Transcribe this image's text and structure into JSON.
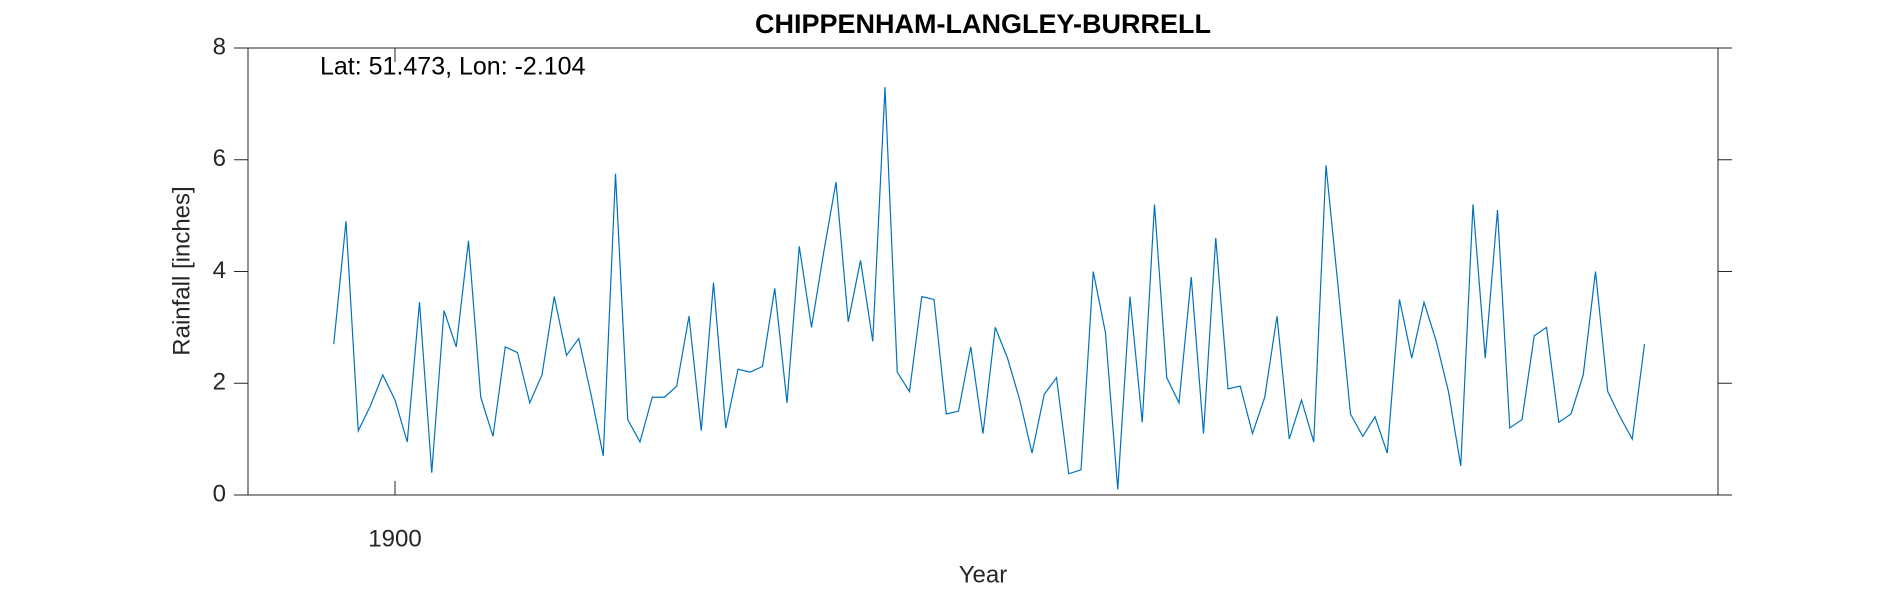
{
  "chart_data": {
    "type": "line",
    "title": "CHIPPENHAM-LANGLEY-BURRELL",
    "annotation": "Lat: 51.473, Lon: -2.104",
    "xlabel": "Year",
    "ylabel": "Rainfall [inches]",
    "x": [
      1895,
      1896,
      1897,
      1898,
      1899,
      1900,
      1901,
      1902,
      1903,
      1904,
      1905,
      1906,
      1907,
      1908,
      1909,
      1910,
      1911,
      1912,
      1913,
      1914,
      1915,
      1916,
      1917,
      1918,
      1919,
      1920,
      1921,
      1922,
      1923,
      1924,
      1925,
      1926,
      1927,
      1928,
      1929,
      1930,
      1931,
      1932,
      1933,
      1934,
      1935,
      1936,
      1937,
      1938,
      1939,
      1940,
      1941,
      1942,
      1943,
      1944,
      1945,
      1946,
      1947,
      1948,
      1949,
      1950,
      1951,
      1952,
      1953,
      1954,
      1955,
      1956,
      1957,
      1958,
      1959,
      1960,
      1961,
      1962,
      1963,
      1964,
      1965,
      1966,
      1967,
      1968,
      1969,
      1970,
      1971,
      1972,
      1973,
      1974,
      1975,
      1976,
      1977,
      1978,
      1979,
      1980,
      1981,
      1982,
      1983,
      1984,
      1985,
      1986,
      1987,
      1988,
      1989,
      1990,
      1991,
      1992,
      1993,
      1994,
      1995,
      1996,
      1997,
      1998,
      1999,
      2000,
      2001,
      2002
    ],
    "series": [
      {
        "name": "Rainfall",
        "color": "#0072bd",
        "values": [
          2.7,
          4.9,
          1.15,
          1.6,
          2.15,
          1.7,
          0.95,
          3.45,
          0.4,
          3.3,
          2.65,
          4.55,
          1.75,
          1.05,
          2.65,
          2.55,
          1.65,
          2.15,
          3.55,
          2.5,
          2.8,
          1.8,
          0.7,
          5.75,
          1.35,
          0.95,
          1.75,
          1.75,
          1.95,
          3.2,
          1.15,
          3.8,
          1.2,
          2.25,
          2.2,
          2.3,
          3.7,
          1.65,
          4.45,
          3.0,
          4.35,
          5.6,
          3.1,
          4.2,
          2.75,
          7.3,
          2.2,
          1.85,
          3.55,
          3.5,
          1.45,
          1.5,
          2.65,
          1.1,
          3.0,
          2.45,
          1.7,
          0.75,
          1.8,
          2.1,
          0.38,
          0.45,
          4.0,
          2.9,
          0.1,
          3.55,
          1.3,
          5.2,
          2.1,
          1.65,
          3.9,
          1.1,
          4.6,
          1.9,
          1.95,
          1.1,
          1.75,
          3.2,
          1.0,
          1.7,
          0.95,
          5.9,
          3.7,
          1.45,
          1.05,
          1.4,
          0.75,
          3.5,
          2.45,
          3.45,
          2.75,
          1.85,
          0.52,
          5.2,
          2.45,
          5.1,
          1.2,
          1.35,
          2.85,
          3.0,
          1.3,
          1.45,
          2.15,
          4.0,
          1.85,
          1.4,
          1.0,
          2.7
        ]
      }
    ],
    "xlim": [
      1888,
      2008
    ],
    "xticks": [
      1900
    ],
    "ylim": [
      0,
      8
    ],
    "yticks": [
      0,
      2,
      4,
      6,
      8
    ]
  }
}
